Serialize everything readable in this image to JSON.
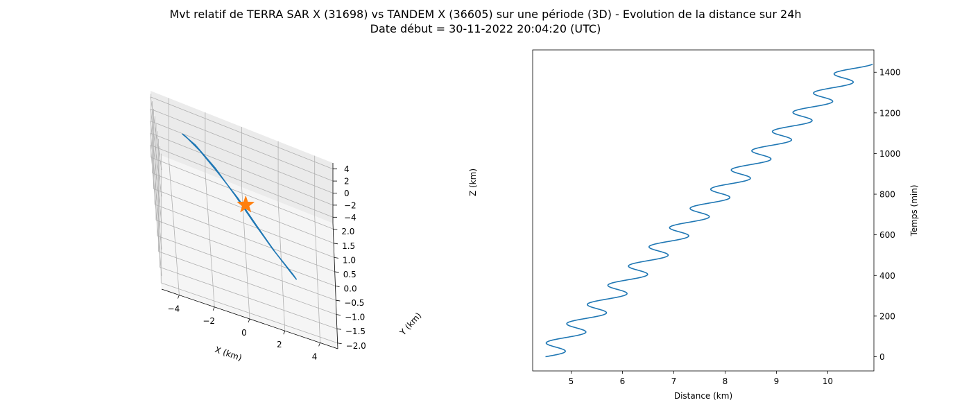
{
  "figure": {
    "title_line1": "Mvt relatif de TERRA SAR X (31698) vs TANDEM X (36605) sur une période (3D) - Evolution de la distance sur 24h",
    "title_line2": "Date début = 30-11-2022 20:04:20 (UTC)"
  },
  "colors": {
    "series": "#1f77b4",
    "marker": "#ff7f0e",
    "grid": "#b0b0b0",
    "pane": "#f2f2f2"
  },
  "chart_data": [
    {
      "type": "line",
      "subtype": "3d",
      "xlabel": "X (km)",
      "ylabel": "Y (km)",
      "zlabel": "Z (km)",
      "xlim": [
        -5,
        5
      ],
      "ylim": [
        -2.2,
        2.2
      ],
      "zlim": [
        -5,
        5
      ],
      "xticks": [
        "−4",
        "−2",
        "0",
        "2",
        "4"
      ],
      "yticks": [
        "−2.0",
        "−1.5",
        "−1.0",
        "−0.5",
        "0.0",
        "0.5",
        "1.0",
        "1.5",
        "2.0"
      ],
      "zticks": [
        "−4",
        "−2",
        "0",
        "2",
        "4"
      ],
      "grid": true,
      "series": [
        {
          "kind": "orbit",
          "points": [
            [
              -3.5,
              0.3,
              4.5
            ],
            [
              -3.3,
              0.4,
              4.2
            ],
            [
              -2.5,
              0.5,
              3.0
            ],
            [
              -1.5,
              0.5,
              1.3
            ],
            [
              -0.4,
              0.4,
              -0.5
            ],
            [
              0.6,
              0.2,
              -2.2
            ],
            [
              1.6,
              0.0,
              -3.7
            ],
            [
              2.5,
              -0.2,
              -4.7
            ],
            [
              2.8,
              -0.3,
              -4.9
            ],
            [
              2.6,
              -0.35,
              -4.4
            ],
            [
              1.5,
              -0.3,
              -2.8
            ],
            [
              0.4,
              -0.2,
              -1.0
            ],
            [
              -0.6,
              -0.05,
              0.7
            ],
            [
              -1.7,
              0.1,
              2.5
            ],
            [
              -2.8,
              0.2,
              4.0
            ],
            [
              -3.5,
              0.3,
              4.5
            ]
          ]
        },
        {
          "kind": "star",
          "points": [
            [
              0,
              0,
              0
            ]
          ]
        }
      ]
    },
    {
      "type": "line",
      "xlabel": "Distance (km)",
      "ylabel": "Temps (min)",
      "xlim": [
        4.25,
        10.9
      ],
      "ylim": [
        -70,
        1510
      ],
      "xticks": [
        5,
        6,
        7,
        8,
        9,
        10
      ],
      "yticks": [
        0,
        200,
        400,
        600,
        800,
        1000,
        1200,
        1400
      ],
      "y_axis_side": "right",
      "grid": false,
      "series": [
        {
          "name": "",
          "function": "distance = 4.5 + 6.1*t/1440 + 0.28*sin(2*pi*t/94.6)",
          "t_range": [
            0,
            1440
          ]
        }
      ]
    }
  ]
}
